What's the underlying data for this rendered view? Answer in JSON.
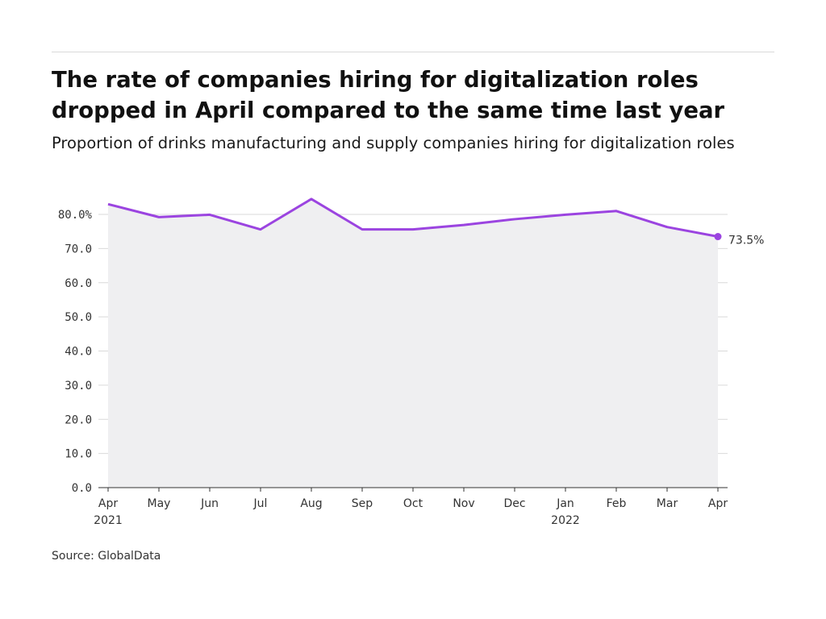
{
  "chart_data": {
    "type": "area",
    "title": "The rate of companies hiring for digitalization roles dropped in April compared to the same time last year",
    "subtitle": "Proportion of drinks manufacturing and supply companies hiring for digitalization roles",
    "xlabel": "",
    "ylabel": "",
    "categories": [
      "Apr",
      "May",
      "Jun",
      "Jul",
      "Aug",
      "Sep",
      "Oct",
      "Nov",
      "Dec",
      "Jan",
      "Feb",
      "Mar",
      "Apr"
    ],
    "year_labels": [
      "2021",
      "",
      "",
      "",
      "",
      "",
      "",
      "",
      "",
      "2022",
      "",
      "",
      ""
    ],
    "values": [
      83.0,
      79.2,
      79.9,
      75.6,
      84.5,
      75.6,
      75.6,
      76.9,
      78.6,
      79.9,
      81.0,
      76.3,
      73.5
    ],
    "ylim": [
      0,
      80
    ],
    "yticks": [
      "80.0%",
      "70.0",
      "60.0",
      "50.0",
      "40.0",
      "30.0",
      "20.0",
      "10.0",
      "0.0"
    ],
    "end_label": "73.5%",
    "grid": true,
    "line_color": "#9b44e0",
    "area_color": "#efeff1",
    "grid_color": "#d9d9d9",
    "axis_color": "#333333"
  },
  "source": "Source: GlobalData"
}
